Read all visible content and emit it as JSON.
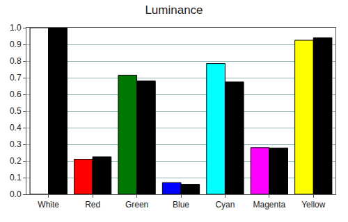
{
  "chart_data": {
    "type": "bar",
    "title": "Luminance",
    "categories": [
      "White",
      "Red",
      "Green",
      "Blue",
      "Cyan",
      "Magenta",
      "Yellow"
    ],
    "series": [
      {
        "colors": [
          "#ffffff",
          "#ff0000",
          "#007700",
          "#0000ff",
          "#00ffff",
          "#ff00ff",
          "#ffff00"
        ],
        "values": [
          1.0,
          0.21,
          0.715,
          0.07,
          0.785,
          0.28,
          0.925
        ]
      },
      {
        "color": "#000000",
        "values": [
          1.0,
          0.225,
          0.68,
          0.06,
          0.675,
          0.278,
          0.94
        ]
      }
    ],
    "ylim": [
      0,
      1
    ],
    "yticks": [
      {
        "value": 0,
        "label": "0.0"
      },
      0.1,
      0.2,
      0.3,
      0.4,
      0.5,
      0.6,
      0.7,
      0.8,
      0.9,
      {
        "value": 1,
        "label": "1.0"
      }
    ],
    "grid": true
  }
}
